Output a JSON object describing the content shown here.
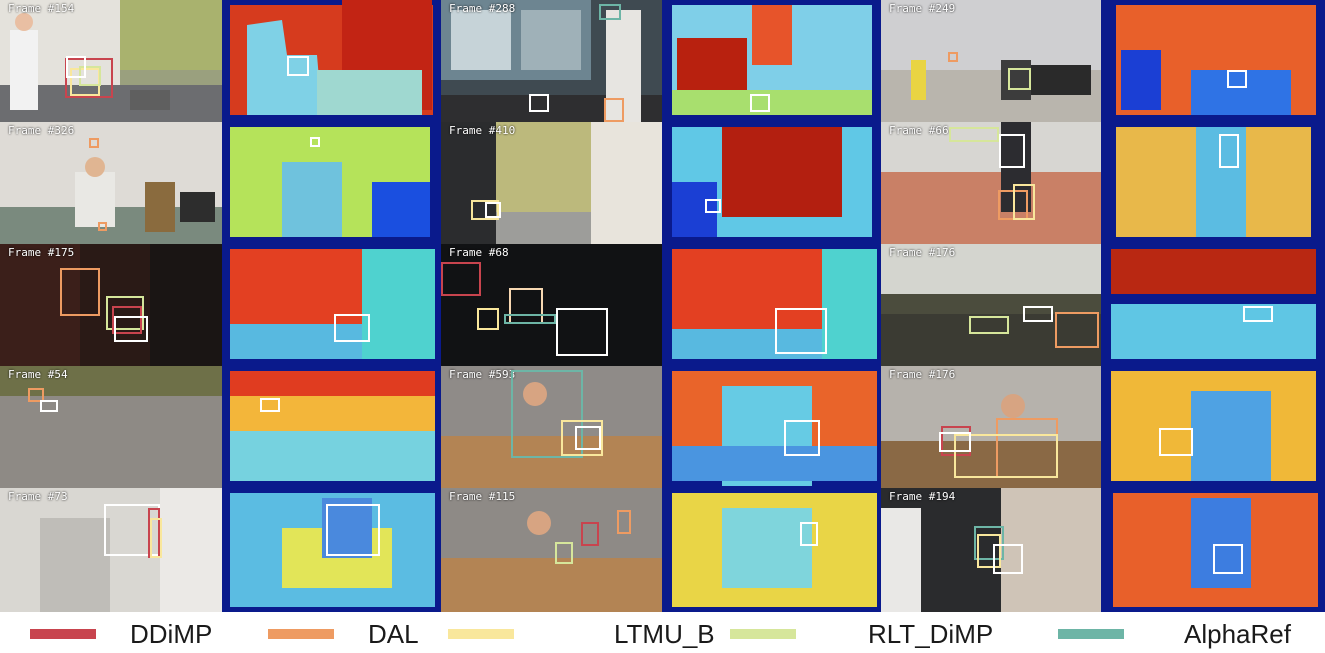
{
  "colors": {
    "DDiMP": "#c8444e",
    "DAL": "#ee9b62",
    "LTMU_B": "#f9e79c",
    "RLT_DiMP": "#d6e69b",
    "AlphaRef": "#6db5a6"
  },
  "legend": [
    {
      "name": "DDiMP",
      "color": "#c8444e"
    },
    {
      "name": "DAL",
      "color": "#ee9b62"
    },
    {
      "name": "LTMU_B",
      "color": "#f9e79c"
    },
    {
      "name": "RLT_DiMP",
      "color": "#d6e69b"
    },
    {
      "name": "AlphaRef",
      "color": "#6db5a6"
    }
  ],
  "frames": [
    [
      "Frame #154",
      "Frame #288",
      "Frame #249"
    ],
    [
      "Frame #326",
      "Frame #410",
      "Frame #66"
    ],
    [
      "Frame #175",
      "Frame #68",
      "Frame #176"
    ],
    [
      "Frame #54",
      "Frame #593",
      "Frame #176"
    ],
    [
      "Frame #73",
      "Frame #115",
      "Frame #194"
    ]
  ]
}
